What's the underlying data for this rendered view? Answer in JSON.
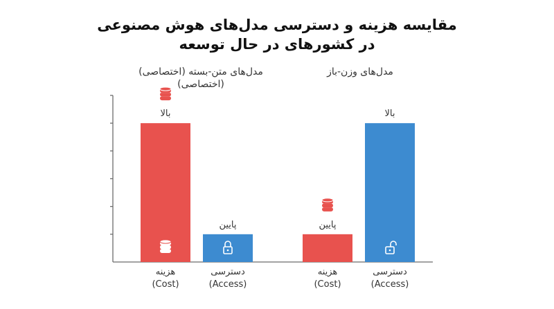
{
  "title_line1": "مقایسه هزینه و دسترسی مدل‌های هوش مصنوعی",
  "title_line2": "در کشورهای در حال توسعه",
  "chart_data": {
    "type": "bar",
    "groups": [
      {
        "name_lines": [
          "مدل‌های متن-بسته (اختصاصی)",
          "(اختصاصی)"
        ],
        "bars": [
          {
            "category": "هزینه",
            "category_en": "(Cost)",
            "value": 5,
            "value_label": "بالا",
            "color": "#e8524e",
            "icon": "coins-icon",
            "bar_icon": "coins-icon"
          },
          {
            "category": "دسترسی",
            "category_en": "(Access)",
            "value": 1,
            "value_label": "پایین",
            "color": "#3d8bd0",
            "icon": "",
            "bar_icon": "lock-closed-icon"
          }
        ]
      },
      {
        "name_lines": [
          "مدل‌های وزن-باز"
        ],
        "bars": [
          {
            "category": "هزینه",
            "category_en": "(Cost)",
            "value": 1,
            "value_label": "پایین",
            "color": "#e8524e",
            "icon": "coins-icon",
            "bar_icon": ""
          },
          {
            "category": "دسترسی",
            "category_en": "(Access)",
            "value": 5,
            "value_label": "بالا",
            "color": "#3d8bd0",
            "icon": "",
            "bar_icon": "lock-open-icon"
          }
        ]
      }
    ],
    "ylim": [
      0,
      6
    ],
    "yticks": 6,
    "xlabel": "",
    "ylabel": ""
  }
}
